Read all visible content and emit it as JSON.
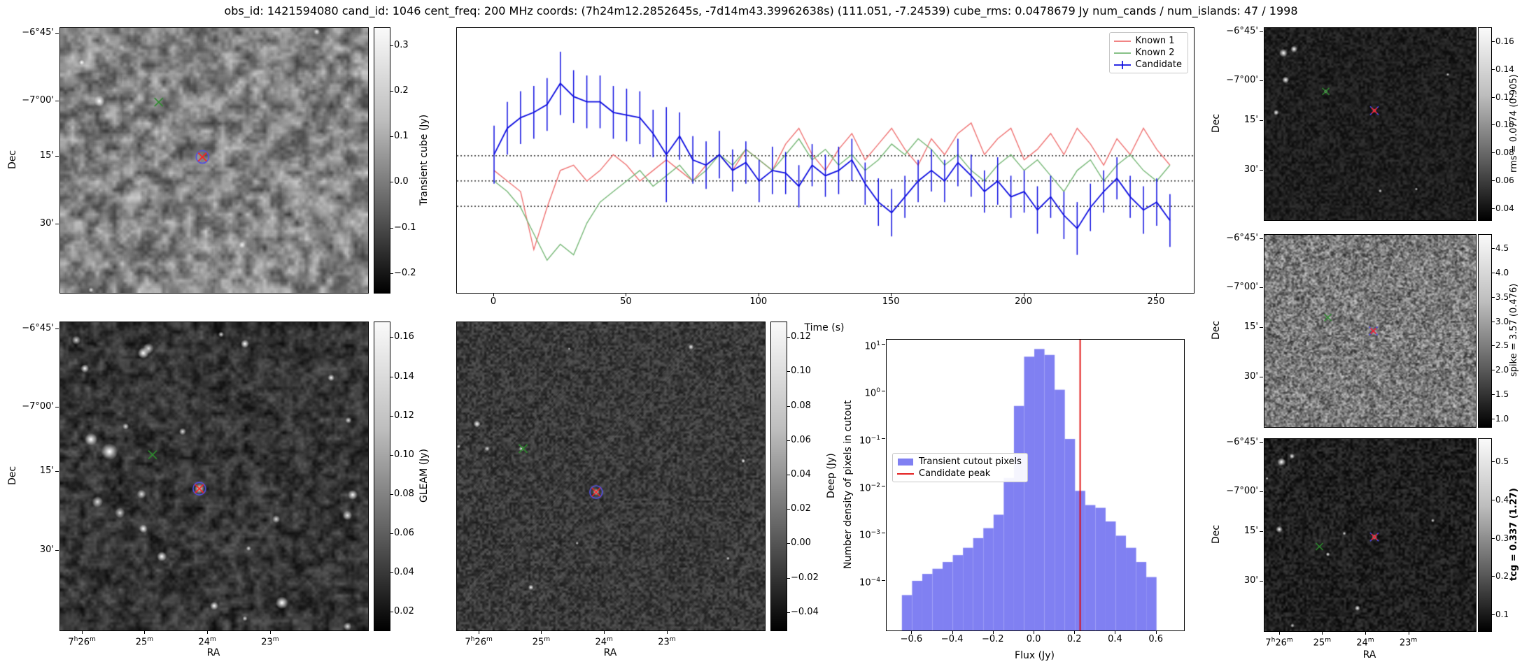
{
  "title": "obs_id: 1421594080 cand_id: 1046 cent_freq: 200 MHz coords: (7h24m12.2852645s, -7d14m43.39962638s) (111.051, -7.24539) cube_rms: 0.0478679 Jy num_cands / num_islands: 47 / 1998",
  "axes": {
    "dec_label": "Dec",
    "ra_label": "RA",
    "dec_ticks": {
      "labels": [
        "−6°45'",
        "−7°00'",
        "15'",
        "30'"
      ],
      "fracs": [
        0.022,
        0.276,
        0.485,
        0.742
      ]
    },
    "ra_ticks": {
      "labels": [
        "7h26m",
        "25m",
        "24m",
        "23m"
      ],
      "fracs": [
        0.073,
        0.276,
        0.48,
        0.684
      ]
    }
  },
  "panels": {
    "transient": {
      "colorbar_label": "Transient cube (Jy)",
      "cb": {
        "vmax": 0.34,
        "vmin": -0.245,
        "tick_values": [
          0.3,
          0.2,
          0.1,
          0,
          -0.1,
          -0.2
        ],
        "tick_labels": [
          "0.3",
          "0.2",
          "0.1",
          "0.0",
          "−0.1",
          "−0.2"
        ]
      },
      "image": {
        "seed": 11,
        "grain": 12,
        "lo": 55,
        "hi": 210,
        "grain2": 5,
        "grain2_alpha": 0.3,
        "spots": 3,
        "spot_min": 3,
        "spot_max": 6,
        "fixed_spots": [
          [
            0.127,
            0.276,
            8
          ],
          [
            0.07,
            0.13,
            4
          ]
        ]
      },
      "markers": [
        {
          "shape": "x",
          "color": "#2e8b2e",
          "x": 0.32,
          "y": 0.28,
          "s": 6
        },
        {
          "shape": "circle",
          "color": "#5050e6",
          "x": 0.462,
          "y": 0.487,
          "s": 9
        },
        {
          "shape": "x",
          "color": "#ff1f1f",
          "x": 0.462,
          "y": 0.487,
          "s": 6
        }
      ]
    },
    "gleam": {
      "colorbar_label": "GLEAM (Jy)",
      "cb": {
        "vmax": 0.168,
        "vmin": 0.01,
        "tick_values": [
          0.16,
          0.14,
          0.12,
          0.1,
          0.08,
          0.06,
          0.04,
          0.02
        ],
        "tick_labels": [
          "0.16",
          "0.14",
          "0.12",
          "0.10",
          "0.08",
          "0.06",
          "0.04",
          "0.02"
        ]
      },
      "image": {
        "seed": 22,
        "grain": 9,
        "lo": 8,
        "hi": 100,
        "grain2": 4,
        "grain2_alpha": 0.35,
        "spots": 14,
        "spot_min": 3,
        "spot_max": 8,
        "fixed_spots": [
          [
            0.452,
            0.54,
            7
          ],
          [
            0.16,
            0.42,
            12
          ],
          [
            0.1,
            0.38,
            9
          ],
          [
            0.27,
            0.1,
            8
          ],
          [
            0.08,
            0.15,
            6
          ],
          [
            0.33,
            0.76,
            7
          ],
          [
            0.72,
            0.91,
            9
          ],
          [
            0.95,
            0.56,
            7
          ],
          [
            0.27,
            0.67,
            6
          ],
          [
            0.6,
            0.07,
            6
          ],
          [
            0.88,
            0.18,
            5
          ],
          [
            0.5,
            0.92,
            6
          ]
        ]
      },
      "markers": [
        {
          "shape": "x",
          "color": "#2e8b2e",
          "x": 0.3,
          "y": 0.43,
          "s": 6
        },
        {
          "shape": "circle",
          "color": "#5050e6",
          "x": 0.452,
          "y": 0.54,
          "s": 9
        },
        {
          "shape": "x",
          "color": "#ff1f1f",
          "x": 0.452,
          "y": 0.54,
          "s": 6
        }
      ]
    },
    "deep": {
      "colorbar_label": "Deep (Jy)",
      "cb": {
        "vmax": 0.129,
        "vmin": -0.051,
        "tick_values": [
          0.12,
          0.1,
          0.08,
          0.06,
          0.04,
          0.02,
          0,
          -0.02,
          -0.04
        ],
        "tick_labels": [
          "0.12",
          "0.10",
          "0.08",
          "0.06",
          "0.04",
          "0.02",
          "0.00",
          "−0.02",
          "−0.04"
        ]
      },
      "image": {
        "seed": 33,
        "grain": 3,
        "lo": 28,
        "hi": 88,
        "streaks": 70,
        "spots": 5,
        "spot_min": 2,
        "spot_max": 4,
        "fixed_spots": [
          [
            0.452,
            0.551,
            5
          ],
          [
            0.21,
            0.41,
            4
          ],
          [
            0.065,
            0.33,
            5
          ],
          [
            0.24,
            0.86,
            4
          ],
          [
            0.76,
            0.08,
            4
          ],
          [
            0.93,
            0.45,
            3
          ]
        ]
      },
      "markers": [
        {
          "shape": "x",
          "color": "#2e8b2e",
          "x": 0.215,
          "y": 0.41,
          "s": 6
        },
        {
          "shape": "circle",
          "color": "#5050e6",
          "x": 0.452,
          "y": 0.551,
          "s": 9
        },
        {
          "shape": "x",
          "color": "#ff1f1f",
          "x": 0.452,
          "y": 0.551,
          "s": 6
        }
      ]
    },
    "rms": {
      "colorbar_label": "rms = 0.0774 (0.905)",
      "cb": {
        "vmax": 0.17,
        "vmin": 0.031,
        "tick_values": [
          0.16,
          0.14,
          0.12,
          0.1,
          0.08,
          0.06,
          0.04
        ],
        "tick_labels": [
          "0.16",
          "0.14",
          "0.12",
          "0.10",
          "0.08",
          "0.06",
          "0.04"
        ]
      },
      "image": {
        "seed": 44,
        "grain": 3,
        "lo": 10,
        "hi": 52,
        "spots": 3,
        "spot_min": 2,
        "spot_max": 3,
        "fixed_spots": [
          [
            0.09,
            0.13,
            6
          ],
          [
            0.14,
            0.11,
            5
          ],
          [
            0.1,
            0.27,
            5
          ],
          [
            0.055,
            0.44,
            4
          ],
          [
            0.52,
            0.43,
            3
          ],
          [
            0.29,
            0.33,
            3
          ]
        ]
      },
      "markers": [
        {
          "shape": "x",
          "color": "#2e8b2e",
          "x": 0.29,
          "y": 0.33,
          "s": 5
        },
        {
          "shape": "x",
          "color": "#4b4bf0",
          "x": 0.52,
          "y": 0.43,
          "s": 6
        },
        {
          "shape": "x",
          "color": "#ff1f1f",
          "x": 0.52,
          "y": 0.43,
          "s": 4
        }
      ]
    },
    "spike": {
      "colorbar_label": "spike = 3.57 (0.476)",
      "cb": {
        "vmax": 4.78,
        "vmin": 0.82,
        "tick_values": [
          4.5,
          4,
          3.5,
          3,
          2.5,
          2,
          1.5,
          1
        ],
        "tick_labels": [
          "4.5",
          "4.0",
          "3.5",
          "3.0",
          "2.5",
          "2.0",
          "1.5",
          "1.0"
        ]
      },
      "image": {
        "seed": 55,
        "grain": 3,
        "lo": 30,
        "hi": 215,
        "grain2": 2,
        "grain2_alpha": 0.5
      },
      "markers": [
        {
          "shape": "x",
          "color": "#2e8b2e",
          "x": 0.3,
          "y": 0.43,
          "s": 5
        },
        {
          "shape": "x",
          "color": "#4b4bf0",
          "x": 0.515,
          "y": 0.5,
          "s": 6
        },
        {
          "shape": "x",
          "color": "#ff1f1f",
          "x": 0.515,
          "y": 0.5,
          "s": 4
        }
      ]
    },
    "tcg": {
      "colorbar_label": "tcg = 0.337 (1.27)",
      "bold": true,
      "cb": {
        "vmax": 0.56,
        "vmin": 0.055,
        "tick_values": [
          0.5,
          0.4,
          0.3,
          0.2,
          0.1
        ],
        "tick_labels": [
          "0.5",
          "0.4",
          "0.3",
          "0.2",
          "0.1"
        ]
      },
      "image": {
        "seed": 66,
        "grain": 3,
        "lo": 6,
        "hi": 58,
        "spots": 4,
        "spot_min": 2,
        "spot_max": 3,
        "fixed_spots": [
          [
            0.08,
            0.12,
            6
          ],
          [
            0.13,
            0.09,
            4
          ],
          [
            0.07,
            0.47,
            5
          ],
          [
            0.52,
            0.51,
            4
          ],
          [
            0.3,
            0.6,
            3
          ],
          [
            0.44,
            0.88,
            4
          ]
        ]
      },
      "markers": [
        {
          "shape": "x",
          "color": "#2e8b2e",
          "x": 0.26,
          "y": 0.56,
          "s": 5
        },
        {
          "shape": "x",
          "color": "#4b4bf0",
          "x": 0.52,
          "y": 0.51,
          "s": 6
        },
        {
          "shape": "x",
          "color": "#ff1f1f",
          "x": 0.52,
          "y": 0.51,
          "s": 4
        }
      ]
    }
  },
  "chart_data": [
    {
      "type": "line",
      "title": "",
      "xlabel": "Time (s)",
      "ylabel": "",
      "x_ticks": [
        0,
        50,
        100,
        150,
        200,
        250
      ],
      "xlim": [
        -14,
        264
      ],
      "ylim": [
        -0.212,
        0.29
      ],
      "hlines": [
        0.0478679,
        0,
        -0.0478679
      ],
      "legend_loc": "upper right",
      "x": [
        0,
        5,
        10,
        15,
        20,
        25,
        30,
        35,
        40,
        45,
        50,
        55,
        60,
        65,
        70,
        75,
        80,
        85,
        90,
        95,
        100,
        105,
        110,
        115,
        120,
        125,
        130,
        135,
        140,
        145,
        150,
        155,
        160,
        165,
        170,
        175,
        180,
        185,
        190,
        195,
        200,
        205,
        210,
        215,
        220,
        225,
        230,
        235,
        240,
        245,
        250,
        255
      ],
      "series": [
        {
          "name": "Known 1",
          "color": "#ef7272",
          "y": [
            0.02,
            0.0,
            -0.02,
            -0.13,
            -0.05,
            0.02,
            0.03,
            0.0,
            0.02,
            0.05,
            0.03,
            0.0,
            0.02,
            0.04,
            0.02,
            0.0,
            0.03,
            0.05,
            0.02,
            0.06,
            0.04,
            0.02,
            0.07,
            0.1,
            0.05,
            0.02,
            0.06,
            0.09,
            0.04,
            0.07,
            0.1,
            0.06,
            0.03,
            0.08,
            0.05,
            0.09,
            0.11,
            0.05,
            0.08,
            0.1,
            0.04,
            0.06,
            0.09,
            0.05,
            0.1,
            0.07,
            0.03,
            0.08,
            0.05,
            0.1,
            0.06,
            0.03
          ]
        },
        {
          "name": "Known 2",
          "color": "#77b877",
          "y": [
            0.0,
            -0.02,
            -0.05,
            -0.1,
            -0.15,
            -0.12,
            -0.14,
            -0.08,
            -0.04,
            -0.02,
            0.0,
            0.02,
            -0.01,
            0.01,
            0.03,
            0.0,
            0.02,
            0.05,
            0.03,
            0.06,
            0.04,
            0.02,
            0.05,
            0.08,
            0.04,
            0.06,
            0.03,
            0.05,
            0.02,
            0.04,
            0.07,
            0.05,
            0.08,
            0.06,
            0.03,
            0.05,
            0.02,
            0.0,
            0.03,
            0.05,
            0.02,
            0.04,
            0.01,
            -0.02,
            0.02,
            0.04,
            0.0,
            0.03,
            0.05,
            0.02,
            0.0,
            0.03
          ]
        },
        {
          "name": "Candidate",
          "color": "#0d0de0",
          "y": [
            0.05,
            0.1,
            0.12,
            0.13,
            0.145,
            0.185,
            0.16,
            0.15,
            0.15,
            0.13,
            0.125,
            0.12,
            0.09,
            0.05,
            0.085,
            0.04,
            0.03,
            0.05,
            0.02,
            0.035,
            0.0,
            0.02,
            0.015,
            -0.01,
            0.03,
            0.01,
            0.02,
            0.04,
            -0.005,
            -0.04,
            -0.06,
            -0.03,
            0.0,
            0.02,
            0.0,
            0.035,
            0.01,
            -0.02,
            0.0,
            -0.03,
            -0.02,
            -0.055,
            -0.03,
            -0.065,
            -0.09,
            -0.05,
            -0.02,
            0.005,
            -0.03,
            -0.055,
            -0.04,
            -0.075
          ],
          "yerr": [
            0.055,
            0.05,
            0.05,
            0.05,
            0.05,
            0.06,
            0.05,
            0.05,
            0.05,
            0.05,
            0.05,
            0.05,
            0.045,
            0.09,
            0.045,
            0.045,
            0.045,
            0.045,
            0.04,
            0.04,
            0.04,
            0.045,
            0.04,
            0.04,
            0.04,
            0.04,
            0.045,
            0.04,
            0.04,
            0.045,
            0.045,
            0.04,
            0.04,
            0.04,
            0.04,
            0.045,
            0.04,
            0.04,
            0.045,
            0.04,
            0.04,
            0.045,
            0.04,
            0.045,
            0.05,
            0.045,
            0.04,
            0.04,
            0.04,
            0.045,
            0.045,
            0.05
          ]
        }
      ]
    },
    {
      "type": "bar",
      "title": "",
      "xlabel": "Flux (Jy)",
      "ylabel": "Number density of pixels in cutout",
      "x_ticks": [
        -0.6,
        -0.4,
        -0.2,
        0,
        0.2,
        0.4,
        0.6
      ],
      "x_tick_labels": [
        "−0.6",
        "−0.4",
        "−0.2",
        "0.0",
        "0.2",
        "0.4",
        "0.6"
      ],
      "y_ticks_exp": [
        1,
        0,
        -1,
        -2,
        -3,
        -4
      ],
      "y_tick_labels": [
        "10^1",
        "10^0",
        "10^−1",
        "10^−2",
        "10^−3",
        "10^−4"
      ],
      "xlim": [
        -0.725,
        0.735
      ],
      "ylog10_lim": [
        -5.05,
        1.1
      ],
      "bin_width": 0.05,
      "bin_centers": [
        -0.625,
        -0.575,
        -0.525,
        -0.475,
        -0.425,
        -0.375,
        -0.325,
        -0.275,
        -0.225,
        -0.175,
        -0.125,
        -0.075,
        -0.025,
        0.025,
        0.075,
        0.125,
        0.175,
        0.225,
        0.275,
        0.325,
        0.375,
        0.425,
        0.475,
        0.525,
        0.575
      ],
      "values": [
        5e-05,
        0.0001,
        0.00014,
        0.00018,
        0.00025,
        0.00035,
        0.0005,
        0.0008,
        0.0013,
        0.0025,
        0.015,
        0.5,
        5.5,
        8.0,
        6.0,
        1.1,
        0.1,
        0.008,
        0.004,
        0.0035,
        0.0018,
        0.0009,
        0.0005,
        0.00025,
        0.00012
      ],
      "bar_color": "#8080f2",
      "series_label": "Transient cutout pixels",
      "vline": {
        "x": 0.225,
        "color": "#e00000",
        "label": "Candidate peak"
      },
      "legend_loc": "center left"
    }
  ]
}
